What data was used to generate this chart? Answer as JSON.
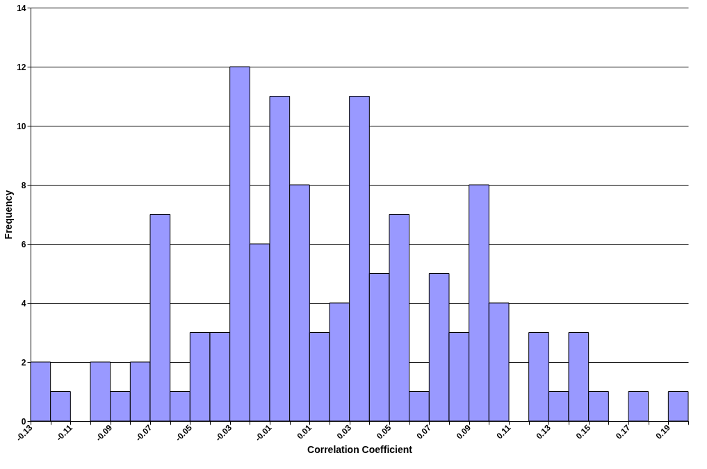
{
  "chart_data": {
    "type": "histogram",
    "xlabel": "Correlation Coefficient",
    "ylabel": "Frequency",
    "color": "#9999ff",
    "bins": [
      -0.13,
      -0.12,
      -0.11,
      -0.1,
      -0.09,
      -0.08,
      -0.07,
      -0.06,
      -0.05,
      -0.04,
      -0.03,
      -0.02,
      -0.01,
      0.0,
      0.01,
      0.02,
      0.03,
      0.04,
      0.05,
      0.06,
      0.07,
      0.08,
      0.09,
      0.1,
      0.11,
      0.12,
      0.13,
      0.14,
      0.15,
      0.16,
      0.17,
      0.18,
      0.19,
      0.2
    ],
    "values": [
      2,
      1,
      0,
      2,
      1,
      2,
      7,
      1,
      3,
      3,
      12,
      6,
      11,
      8,
      3,
      4,
      11,
      5,
      7,
      1,
      5,
      3,
      8,
      4,
      0,
      3,
      1,
      3,
      1,
      0,
      1,
      0,
      1
    ],
    "xlim": [
      -0.13,
      0.2
    ],
    "xticks": [
      -0.13,
      {
        "value": -0.12,
        "label": null
      },
      -0.11,
      {
        "value": -0.1,
        "label": null
      },
      -0.09,
      {
        "value": -0.08,
        "label": null
      },
      -0.07,
      {
        "value": -0.06,
        "label": null
      },
      -0.05,
      {
        "value": -0.04,
        "label": null
      },
      -0.03,
      {
        "value": -0.02,
        "label": null
      },
      -0.01,
      {
        "value": 0.0,
        "label": null
      },
      0.01,
      {
        "value": 0.02,
        "label": null
      },
      0.03,
      {
        "value": 0.04,
        "label": null
      },
      0.05,
      {
        "value": 0.06,
        "label": null
      },
      0.07,
      {
        "value": 0.08,
        "label": null
      },
      0.09,
      {
        "value": 0.1,
        "label": null
      },
      0.11,
      {
        "value": 0.12,
        "label": null
      },
      0.13,
      {
        "value": 0.14,
        "label": null
      },
      0.15,
      {
        "value": 0.16,
        "label": null
      },
      0.17,
      {
        "value": 0.18,
        "label": null
      },
      0.19,
      {
        "value": 0.2,
        "label": null
      }
    ],
    "ylim": [
      0,
      14
    ],
    "yticks": [
      0,
      2,
      4,
      6,
      8,
      10,
      12,
      14
    ],
    "grid": "y"
  }
}
